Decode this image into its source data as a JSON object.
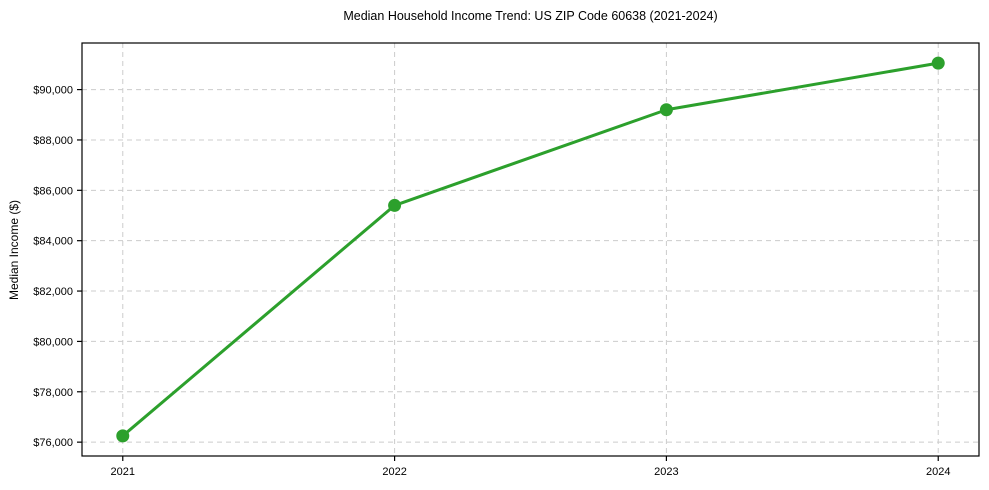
{
  "chart_data": {
    "type": "line",
    "title": "Median Household Income Trend: US ZIP Code 60638 (2021-2024)",
    "xlabel": "",
    "ylabel": "Median Income ($)",
    "categories": [
      "2021",
      "2022",
      "2023",
      "2024"
    ],
    "x": [
      2021,
      2022,
      2023,
      2024
    ],
    "series": [
      {
        "name": "Median Household Income",
        "values": [
          76250,
          85400,
          89200,
          91050
        ]
      }
    ],
    "y_ticks": [
      76000,
      78000,
      80000,
      82000,
      84000,
      86000,
      88000,
      90000
    ],
    "y_tick_labels": [
      "$76,000",
      "$78,000",
      "$80,000",
      "$82,000",
      "$84,000",
      "$86,000",
      "$88,000",
      "$90,000"
    ],
    "xlim": [
      2020.85,
      2024.15
    ],
    "ylim": [
      75450,
      91850
    ],
    "grid": "on",
    "grid_style": "dashed",
    "legend": "none",
    "colors": {
      "line": "#2ca02c",
      "marker": "#2ca02c",
      "grid": "#cccccc",
      "axis": "#000000",
      "text": "#000000",
      "background": "#ffffff"
    }
  }
}
